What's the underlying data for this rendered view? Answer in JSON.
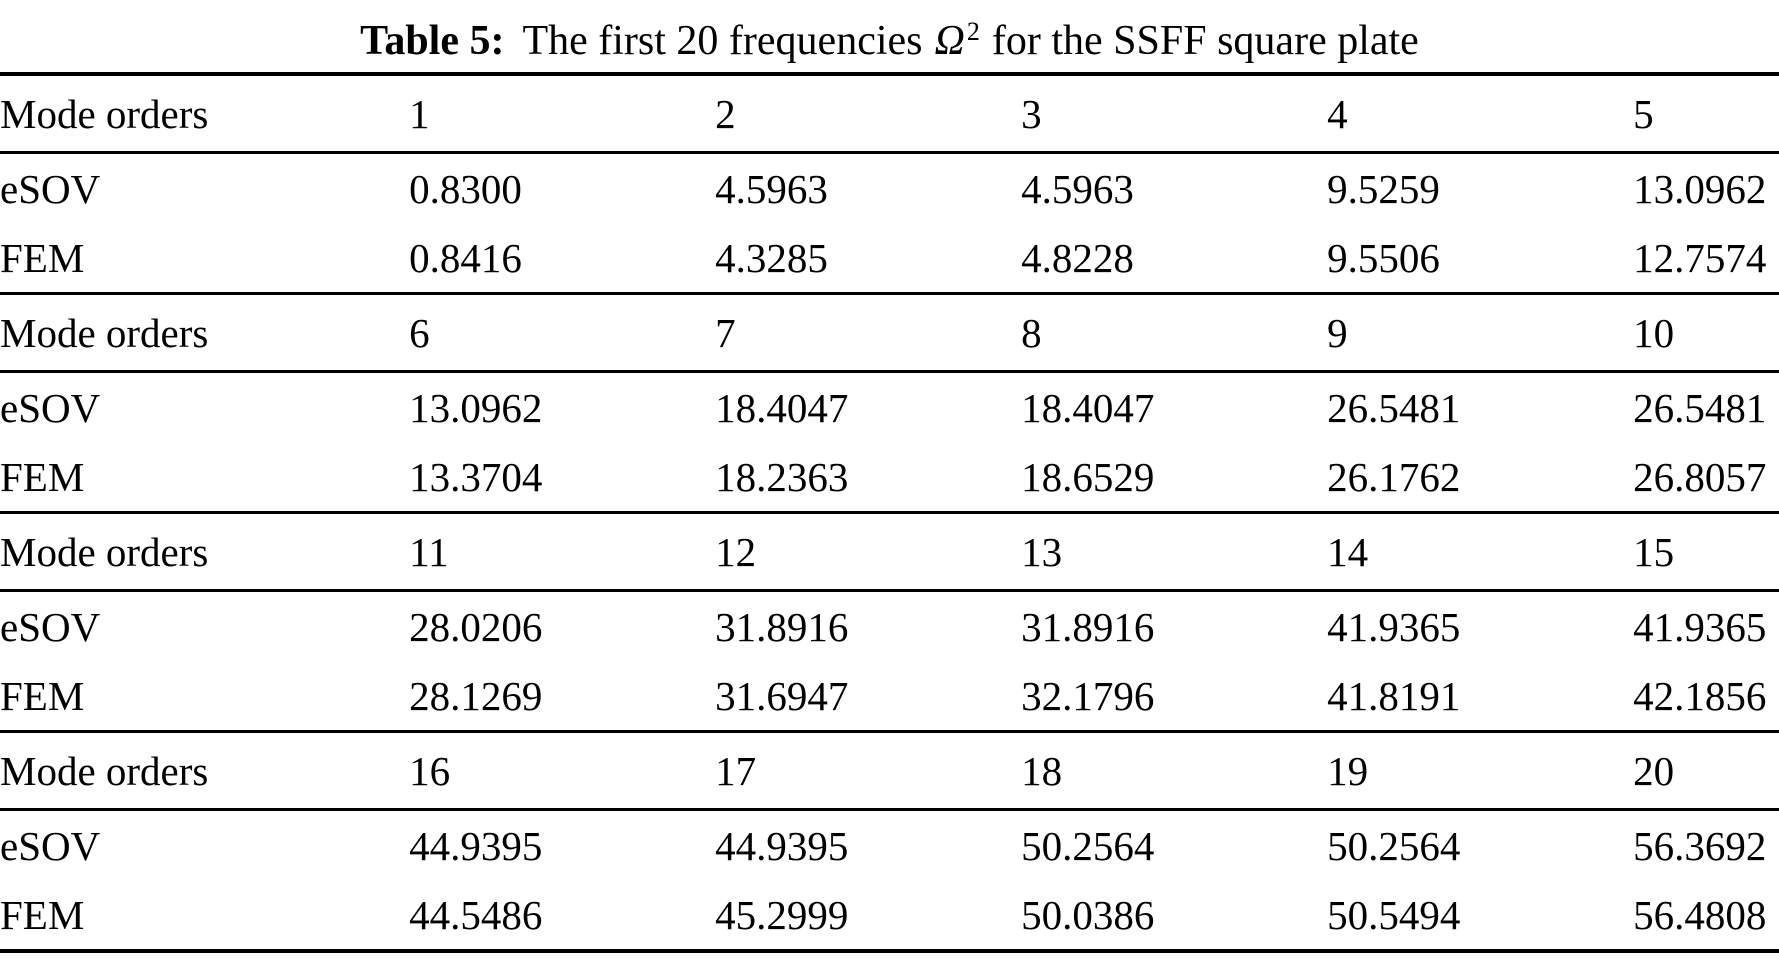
{
  "caption": {
    "label": "Table 5:",
    "before_symbol": "The first 20 frequencies",
    "symbol": "Ω",
    "symbol_sup": "2",
    "after_symbol": "for the SSFF square plate"
  },
  "table": {
    "rows": [
      {
        "type": "header",
        "label": "Mode orders",
        "cells": [
          "1",
          "2",
          "3",
          "4",
          "5"
        ]
      },
      {
        "type": "data",
        "label": "eSOV",
        "cells": [
          "0.8300",
          "4.5963",
          "4.5963",
          "9.5259",
          "13.0962"
        ]
      },
      {
        "type": "data",
        "label": "FEM",
        "cells": [
          "0.8416",
          "4.3285",
          "4.8228",
          "9.5506",
          "12.7574"
        ]
      },
      {
        "type": "header",
        "label": "Mode orders",
        "cells": [
          "6",
          "7",
          "8",
          "9",
          "10"
        ]
      },
      {
        "type": "data",
        "label": "eSOV",
        "cells": [
          "13.0962",
          "18.4047",
          "18.4047",
          "26.5481",
          "26.5481"
        ]
      },
      {
        "type": "data",
        "label": "FEM",
        "cells": [
          "13.3704",
          "18.2363",
          "18.6529",
          "26.1762",
          "26.8057"
        ]
      },
      {
        "type": "header",
        "label": "Mode orders",
        "cells": [
          "11",
          "12",
          "13",
          "14",
          "15"
        ]
      },
      {
        "type": "data",
        "label": "eSOV",
        "cells": [
          "28.0206",
          "31.8916",
          "31.8916",
          "41.9365",
          "41.9365"
        ]
      },
      {
        "type": "data",
        "label": "FEM",
        "cells": [
          "28.1269",
          "31.6947",
          "32.1796",
          "41.8191",
          "42.1856"
        ]
      },
      {
        "type": "header",
        "label": "Mode orders",
        "cells": [
          "16",
          "17",
          "18",
          "19",
          "20"
        ]
      },
      {
        "type": "data",
        "label": "eSOV",
        "cells": [
          "44.9395",
          "44.9395",
          "50.2564",
          "50.2564",
          "56.3692"
        ]
      },
      {
        "type": "data",
        "label": "FEM",
        "cells": [
          "44.5486",
          "45.2999",
          "50.0386",
          "50.5494",
          "56.4808"
        ]
      }
    ]
  },
  "colors": {
    "text": "#000000",
    "background": "#ffffff",
    "rule": "#000000"
  }
}
